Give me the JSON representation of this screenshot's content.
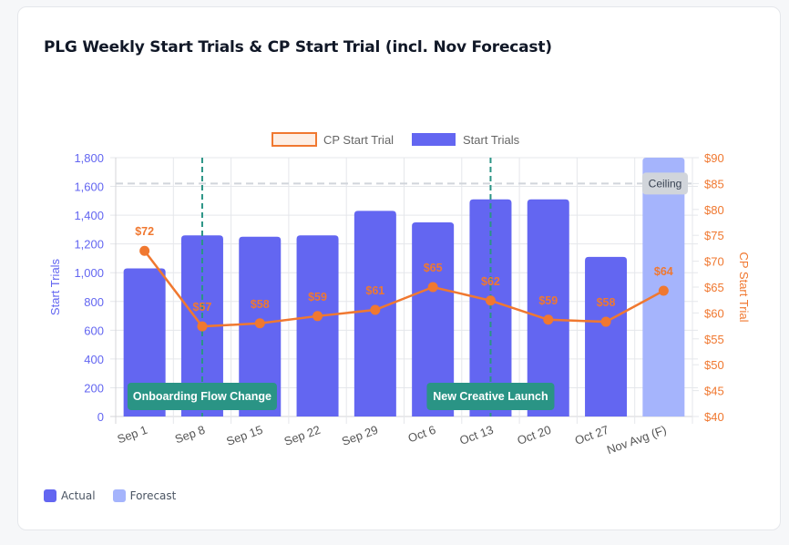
{
  "card": {
    "title": "PLG Weekly Start Trials & CP Start Trial (incl. Nov Forecast)"
  },
  "legend": {
    "items": [
      {
        "label": "CP Start Trial",
        "style": "outline",
        "stroke": "#f07830",
        "fill": "#fdeee4"
      },
      {
        "label": "Start Trials",
        "style": "fill",
        "fill": "#6366f1"
      }
    ]
  },
  "bottom_legend": {
    "items": [
      {
        "label": "Actual",
        "color": "#6366f1"
      },
      {
        "label": "Forecast",
        "color": "#a5b4fc"
      }
    ]
  },
  "annotations": {
    "ceiling_label": "Ceiling",
    "events": [
      {
        "label": "Onboarding Flow Change",
        "category": "Sep 8"
      },
      {
        "label": "New Creative Launch",
        "category": "Oct 13"
      }
    ]
  },
  "colors": {
    "bar_actual": "#6366f1",
    "bar_forecast": "#a5b4fc",
    "line": "#f07830",
    "event_line": "#2a9485",
    "ceiling_line": "#d1d5db",
    "left_axis": "#6366f1",
    "right_axis": "#f07830"
  },
  "chart_data": {
    "type": "bar",
    "title": "PLG Weekly Start Trials & CP Start Trial (incl. Nov Forecast)",
    "categories": [
      "Sep 1",
      "Sep 8",
      "Sep 15",
      "Sep 22",
      "Sep 29",
      "Oct 6",
      "Oct 13",
      "Oct 20",
      "Oct 27",
      "Nov Avg (F)"
    ],
    "series": [
      {
        "name": "Start Trials",
        "type": "bar",
        "axis": "left",
        "values": [
          1030,
          1260,
          1250,
          1260,
          1430,
          1350,
          1510,
          1510,
          1110,
          1800
        ],
        "forecast": [
          false,
          false,
          false,
          false,
          false,
          false,
          false,
          false,
          false,
          true
        ]
      },
      {
        "name": "CP Start Trial",
        "type": "line",
        "axis": "right",
        "values": [
          72,
          57.4,
          58,
          59.4,
          60.6,
          65,
          62.4,
          58.7,
          58.3,
          64.3
        ],
        "labels": [
          "$72",
          "$57",
          "$58",
          "$59",
          "$61",
          "$65",
          "$62",
          "$59",
          "$58",
          "$64"
        ]
      }
    ],
    "ylabel": "Start Trials",
    "ylim": [
      0,
      1800
    ],
    "yticks": [
      "0",
      "200",
      "400",
      "600",
      "800",
      "1,000",
      "1,200",
      "1,400",
      "1,600",
      "1,800"
    ],
    "y2label": "CP Start Trial",
    "y2lim": [
      40,
      90
    ],
    "y2ticks": [
      "$40",
      "$45",
      "$50",
      "$55",
      "$60",
      "$65",
      "$70",
      "$75",
      "$80",
      "$85",
      "$90"
    ],
    "ceiling": 1620,
    "vertical_markers": [
      {
        "category": "Sep 8",
        "label": "Onboarding Flow Change"
      },
      {
        "category": "Oct 13",
        "label": "New Creative Launch"
      }
    ],
    "grid": true,
    "legend_position": "top"
  }
}
